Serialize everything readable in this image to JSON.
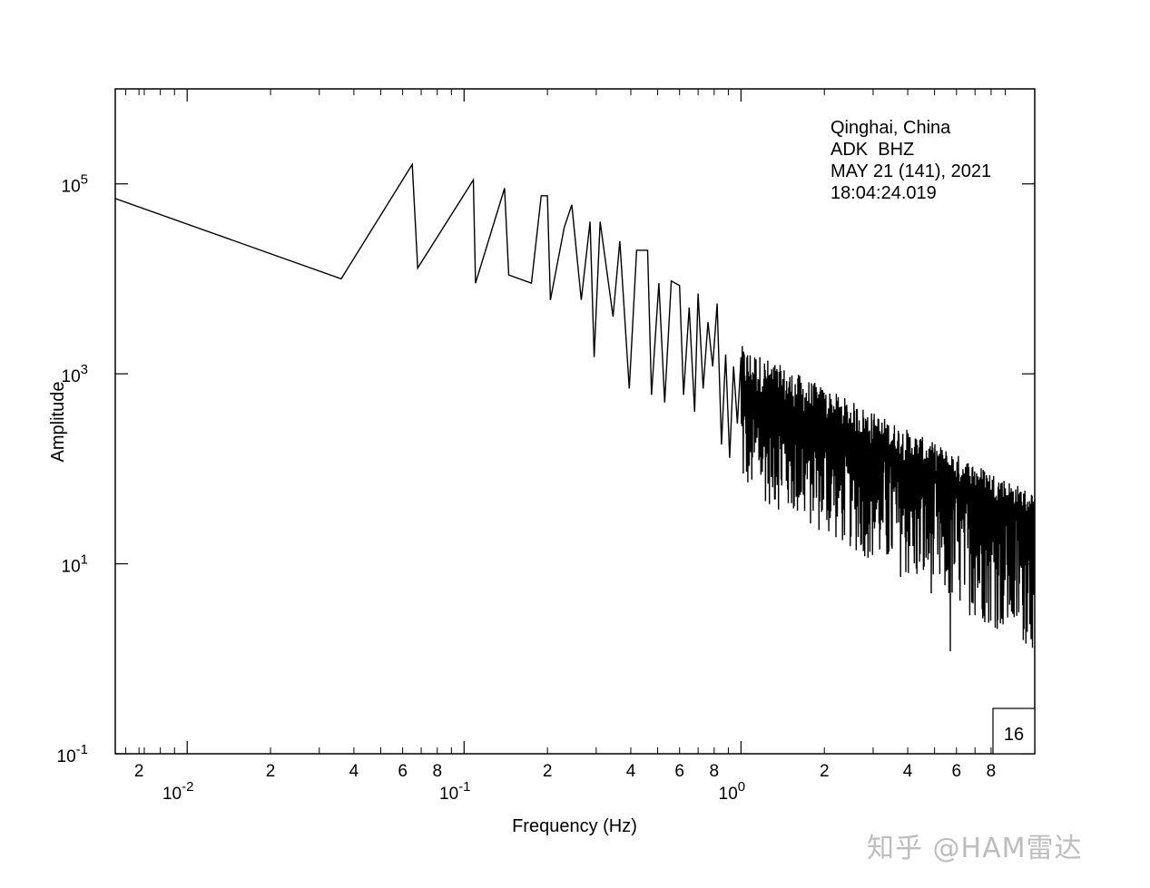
{
  "chart_data": {
    "type": "line",
    "xlabel": "Frequency (Hz)",
    "ylabel": "Amplitude",
    "x_scale": "log",
    "y_scale": "log",
    "xlim": [
      0.0055,
      11.5
    ],
    "ylim": [
      0.1,
      1000000
    ],
    "x_major_ticks": [
      {
        "value": 0.01,
        "base": "10",
        "exp": "-2"
      },
      {
        "value": 0.1,
        "base": "10",
        "exp": "-1"
      },
      {
        "value": 1,
        "base": "10",
        "exp": "0"
      }
    ],
    "x_minor_ticks": [
      {
        "value": 0.002,
        "label": ""
      },
      {
        "value": 0.003,
        "label": ""
      },
      {
        "value": 0.004,
        "label": ""
      },
      {
        "value": 0.005,
        "label": ""
      },
      {
        "value": 0.006,
        "label": ""
      },
      {
        "value": 0.007,
        "label": ""
      },
      {
        "value": 0.008,
        "label": ""
      },
      {
        "value": 0.009,
        "label": ""
      },
      {
        "value": 0.02,
        "label": "2"
      },
      {
        "value": 0.03,
        "label": ""
      },
      {
        "value": 0.04,
        "label": "4"
      },
      {
        "value": 0.05,
        "label": ""
      },
      {
        "value": 0.06,
        "label": "6"
      },
      {
        "value": 0.07,
        "label": ""
      },
      {
        "value": 0.08,
        "label": "8"
      },
      {
        "value": 0.09,
        "label": ""
      },
      {
        "value": 0.2,
        "label": "2"
      },
      {
        "value": 0.3,
        "label": ""
      },
      {
        "value": 0.4,
        "label": "4"
      },
      {
        "value": 0.5,
        "label": ""
      },
      {
        "value": 0.6,
        "label": "6"
      },
      {
        "value": 0.7,
        "label": ""
      },
      {
        "value": 0.8,
        "label": "8"
      },
      {
        "value": 0.9,
        "label": ""
      },
      {
        "value": 2,
        "label": "2"
      },
      {
        "value": 3,
        "label": ""
      },
      {
        "value": 4,
        "label": "4"
      },
      {
        "value": 5,
        "label": ""
      },
      {
        "value": 6,
        "label": "6"
      },
      {
        "value": 7,
        "label": ""
      },
      {
        "value": 8,
        "label": "8"
      },
      {
        "value": 9,
        "label": ""
      }
    ],
    "x_first_minor_labels": [
      {
        "value": 0.0067,
        "label": "2"
      }
    ],
    "y_major_ticks": [
      {
        "value": 0.1,
        "base": "10",
        "exp": "-1"
      },
      {
        "value": 10,
        "base": "10",
        "exp": "1"
      },
      {
        "value": 1000,
        "base": "10",
        "exp": "3"
      },
      {
        "value": 100000,
        "base": "10",
        "exp": "5"
      }
    ],
    "annotations": [
      "Qinghai, China",
      "ADK  BHZ",
      "MAY 21 (141), 2021",
      "18:04:24.019"
    ],
    "panel_label": "16",
    "series_note": "dense spectrum above ~1 Hz rendered procedurally from envelope",
    "series": [
      {
        "points": [
          [
            0.0055,
            70000
          ],
          [
            0.036,
            10000
          ],
          [
            0.065,
            160000
          ],
          [
            0.068,
            13000
          ],
          [
            0.108,
            110000
          ],
          [
            0.11,
            9000
          ],
          [
            0.14,
            90000
          ],
          [
            0.145,
            11000
          ],
          [
            0.175,
            9000
          ],
          [
            0.19,
            75000
          ],
          [
            0.2,
            75000
          ],
          [
            0.205,
            6000
          ],
          [
            0.23,
            35000
          ],
          [
            0.245,
            60000
          ],
          [
            0.265,
            6000
          ],
          [
            0.285,
            40000
          ],
          [
            0.295,
            1500
          ],
          [
            0.31,
            40000
          ],
          [
            0.345,
            4000
          ],
          [
            0.365,
            25000
          ],
          [
            0.395,
            700
          ],
          [
            0.42,
            20000
          ],
          [
            0.46,
            20000
          ],
          [
            0.475,
            600
          ],
          [
            0.505,
            9000
          ],
          [
            0.53,
            500
          ],
          [
            0.56,
            9500
          ],
          [
            0.6,
            8500
          ],
          [
            0.62,
            600
          ],
          [
            0.65,
            5000
          ],
          [
            0.68,
            400
          ],
          [
            0.7,
            7000
          ],
          [
            0.73,
            700
          ],
          [
            0.76,
            3500
          ],
          [
            0.79,
            1200
          ],
          [
            0.82,
            5500
          ],
          [
            0.85,
            180
          ],
          [
            0.88,
            1600
          ],
          [
            0.91,
            130
          ],
          [
            0.94,
            1200
          ],
          [
            0.97,
            300
          ],
          [
            1.0,
            1500
          ]
        ],
        "envelope": {
          "x_start": 1.0,
          "x_end": 11.5,
          "count": 900,
          "center_start": 700,
          "center_end": 30,
          "upper_start": 2000,
          "upper_end": 55,
          "lower_start": 60,
          "lower_end": 1.2,
          "min_dip": [
            5.7,
            1.2
          ]
        }
      }
    ]
  },
  "watermark": "知乎 @HAM雷达"
}
